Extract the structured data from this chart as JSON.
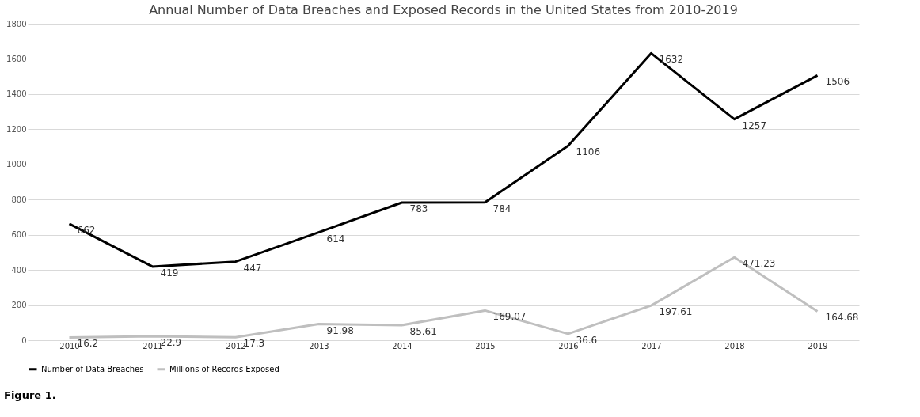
{
  "chart_data": {
    "type": "line",
    "title": "Annual Number of Data Breaches and Exposed Records in the United States from 2010-2019",
    "categories": [
      "2010",
      "2011",
      "2012",
      "2013",
      "2014",
      "2015",
      "2016",
      "2017",
      "2018",
      "2019"
    ],
    "series": [
      {
        "name": "Number of Data Breaches",
        "color": "#000000",
        "values": [
          662,
          419,
          447,
          614,
          783,
          784,
          1106,
          1632,
          1257,
          1506
        ]
      },
      {
        "name": "Millions of Records Exposed",
        "color": "#bfbfbf",
        "values": [
          16.2,
          22.9,
          17.3,
          91.98,
          85.61,
          169.07,
          36.6,
          197.61,
          471.23,
          164.68
        ]
      }
    ],
    "ylim": [
      0,
      1800
    ],
    "yticks": [
      0,
      200,
      400,
      600,
      800,
      1000,
      1200,
      1400,
      1600,
      1800
    ],
    "grid": "y",
    "legend": "bottom",
    "data_labels": true,
    "marker": "none",
    "line_style": "solid",
    "annotations": [
      "Figure 1."
    ]
  }
}
